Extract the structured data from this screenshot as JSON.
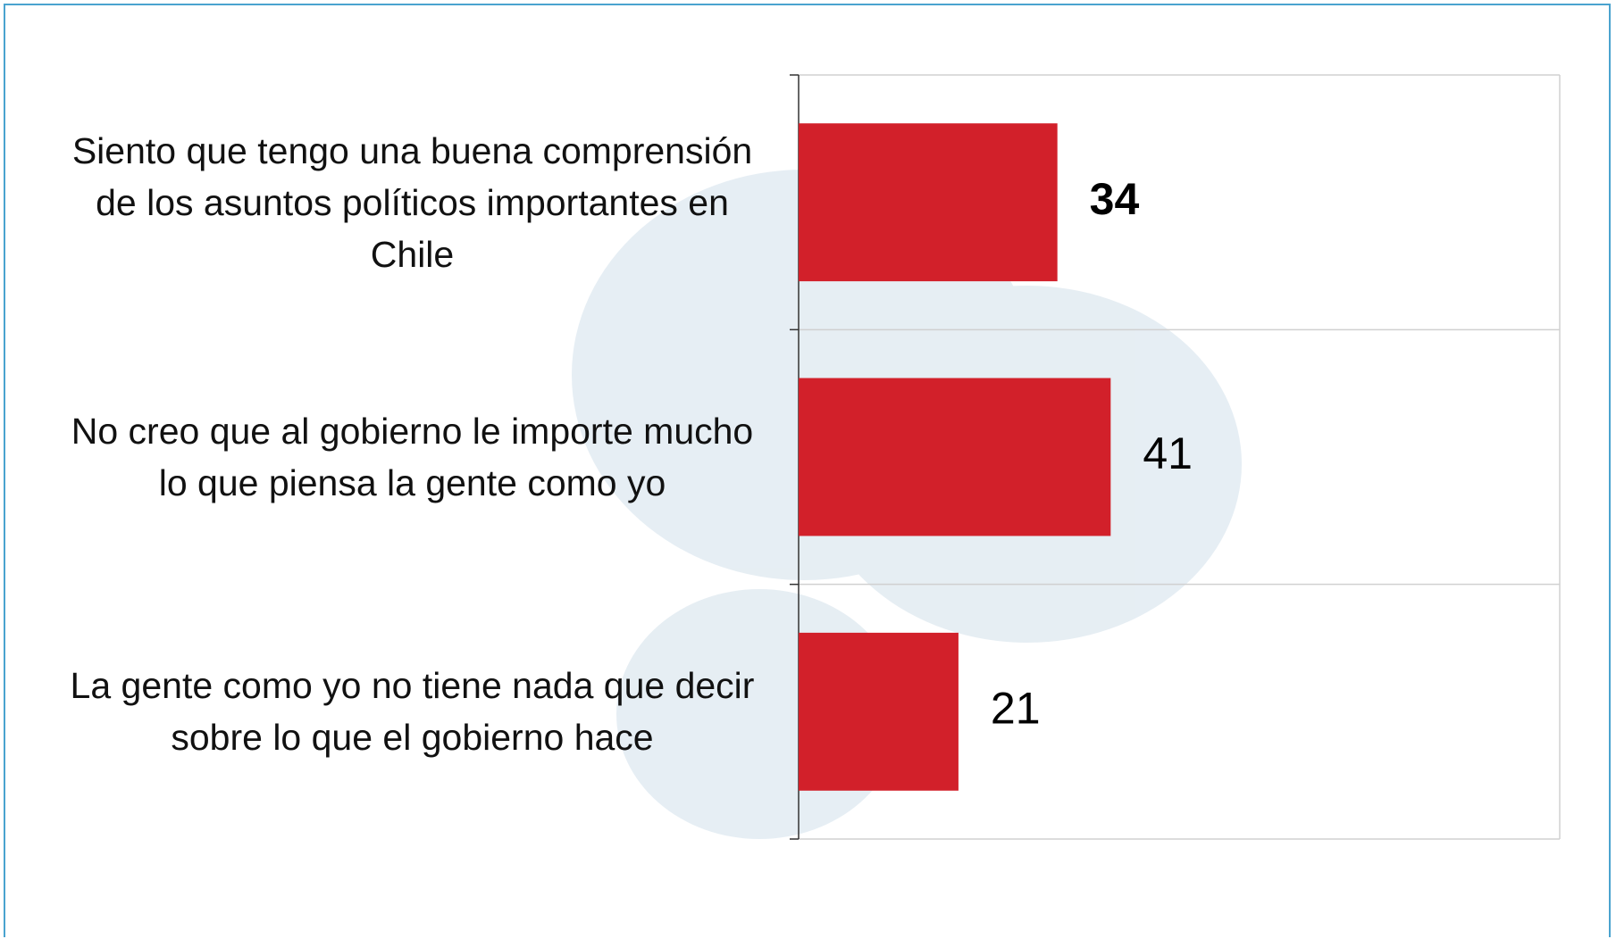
{
  "chart_data": {
    "type": "bar",
    "orientation": "horizontal",
    "categories": [
      "Siento que tengo una buena comprensión de los asuntos políticos importantes en Chile",
      "No creo que al gobierno le importe mucho lo que piensa la gente como yo",
      "La gente como yo no tiene nada que decir sobre lo que el gobierno hace"
    ],
    "values": [
      34,
      41,
      21
    ],
    "color": "#d2202a",
    "xlim": [
      0,
      100
    ]
  }
}
